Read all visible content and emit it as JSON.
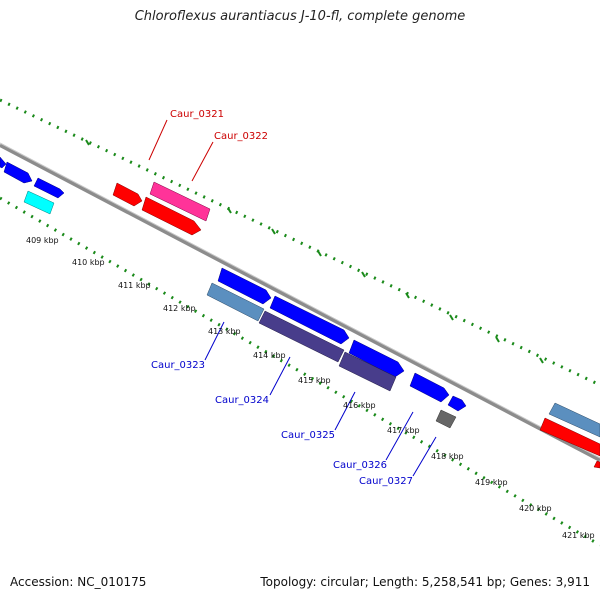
{
  "title": "Chloroflexus aurantiacus J-10-fl, complete genome",
  "footer": {
    "accession": "Accession: NC_010175",
    "summary": "Topology: circular; Length: 5,258,541 bp; Genes: 3,911"
  },
  "ticks": [
    "409 kbp",
    "410 kbp",
    "411 kbp",
    "412 kbp",
    "413 kbp",
    "414 kbp",
    "415 kbp",
    "416 kbp",
    "417 kbp",
    "418 kbp",
    "419 kbp",
    "420 kbp",
    "421 kbp"
  ],
  "gene_labels": {
    "top": [
      {
        "text": "Caur_0321",
        "color": "#cc0000"
      },
      {
        "text": "Caur_0322",
        "color": "#cc0000"
      }
    ],
    "bottom": [
      {
        "text": "Caur_0323",
        "color": "#0000cc"
      },
      {
        "text": "Caur_0324",
        "color": "#0000cc"
      },
      {
        "text": "Caur_0325",
        "color": "#0000cc"
      },
      {
        "text": "Caur_0326",
        "color": "#0000cc"
      },
      {
        "text": "Caur_0327",
        "color": "#0000cc"
      }
    ]
  },
  "colors": {
    "backbone": "#8c8c8c",
    "dotted": "#1a8a1a",
    "blue": "#0000ff",
    "red": "#ff0000",
    "pink": "#ff3399",
    "cyan": "#00ffff",
    "steelblue": "#5b8fbf",
    "slate": "#483d8b",
    "gray": "#666666"
  }
}
